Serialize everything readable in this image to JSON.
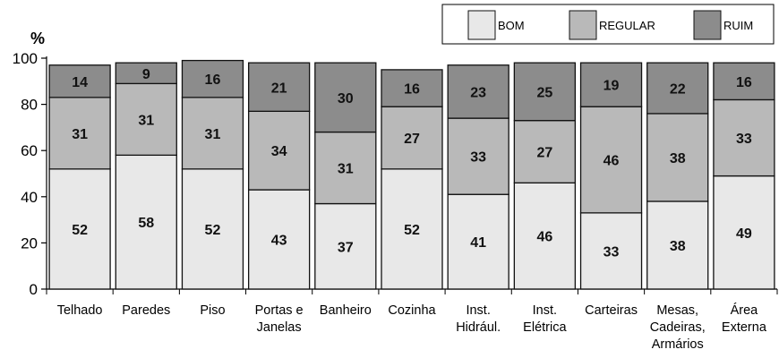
{
  "chart_data": {
    "type": "bar",
    "stacked": true,
    "ylabel": "%",
    "ylim": [
      0,
      100
    ],
    "yticks": [
      0,
      20,
      40,
      60,
      80,
      100
    ],
    "grid": false,
    "legend_position": "top-right",
    "categories": [
      [
        "Telhado"
      ],
      [
        "Paredes"
      ],
      [
        "Piso"
      ],
      [
        "Portas e",
        "Janelas"
      ],
      [
        "Banheiro"
      ],
      [
        "Cozinha"
      ],
      [
        "Inst.",
        "Hidrául."
      ],
      [
        "Inst.",
        "Elétrica"
      ],
      [
        "Carteiras"
      ],
      [
        "Mesas,",
        "Cadeiras,",
        "Armários"
      ],
      [
        "Área",
        "Externa"
      ]
    ],
    "series": [
      {
        "name": "BOM",
        "color": "#e8e8e8",
        "values": [
          52,
          58,
          52,
          43,
          37,
          52,
          41,
          46,
          33,
          38,
          49
        ]
      },
      {
        "name": "REGULAR",
        "color": "#b9b9b9",
        "values": [
          31,
          31,
          31,
          34,
          31,
          27,
          33,
          27,
          46,
          38,
          33
        ]
      },
      {
        "name": "RUIM",
        "color": "#8c8c8c",
        "values": [
          14,
          9,
          16,
          21,
          30,
          16,
          23,
          25,
          19,
          22,
          16
        ]
      }
    ]
  }
}
